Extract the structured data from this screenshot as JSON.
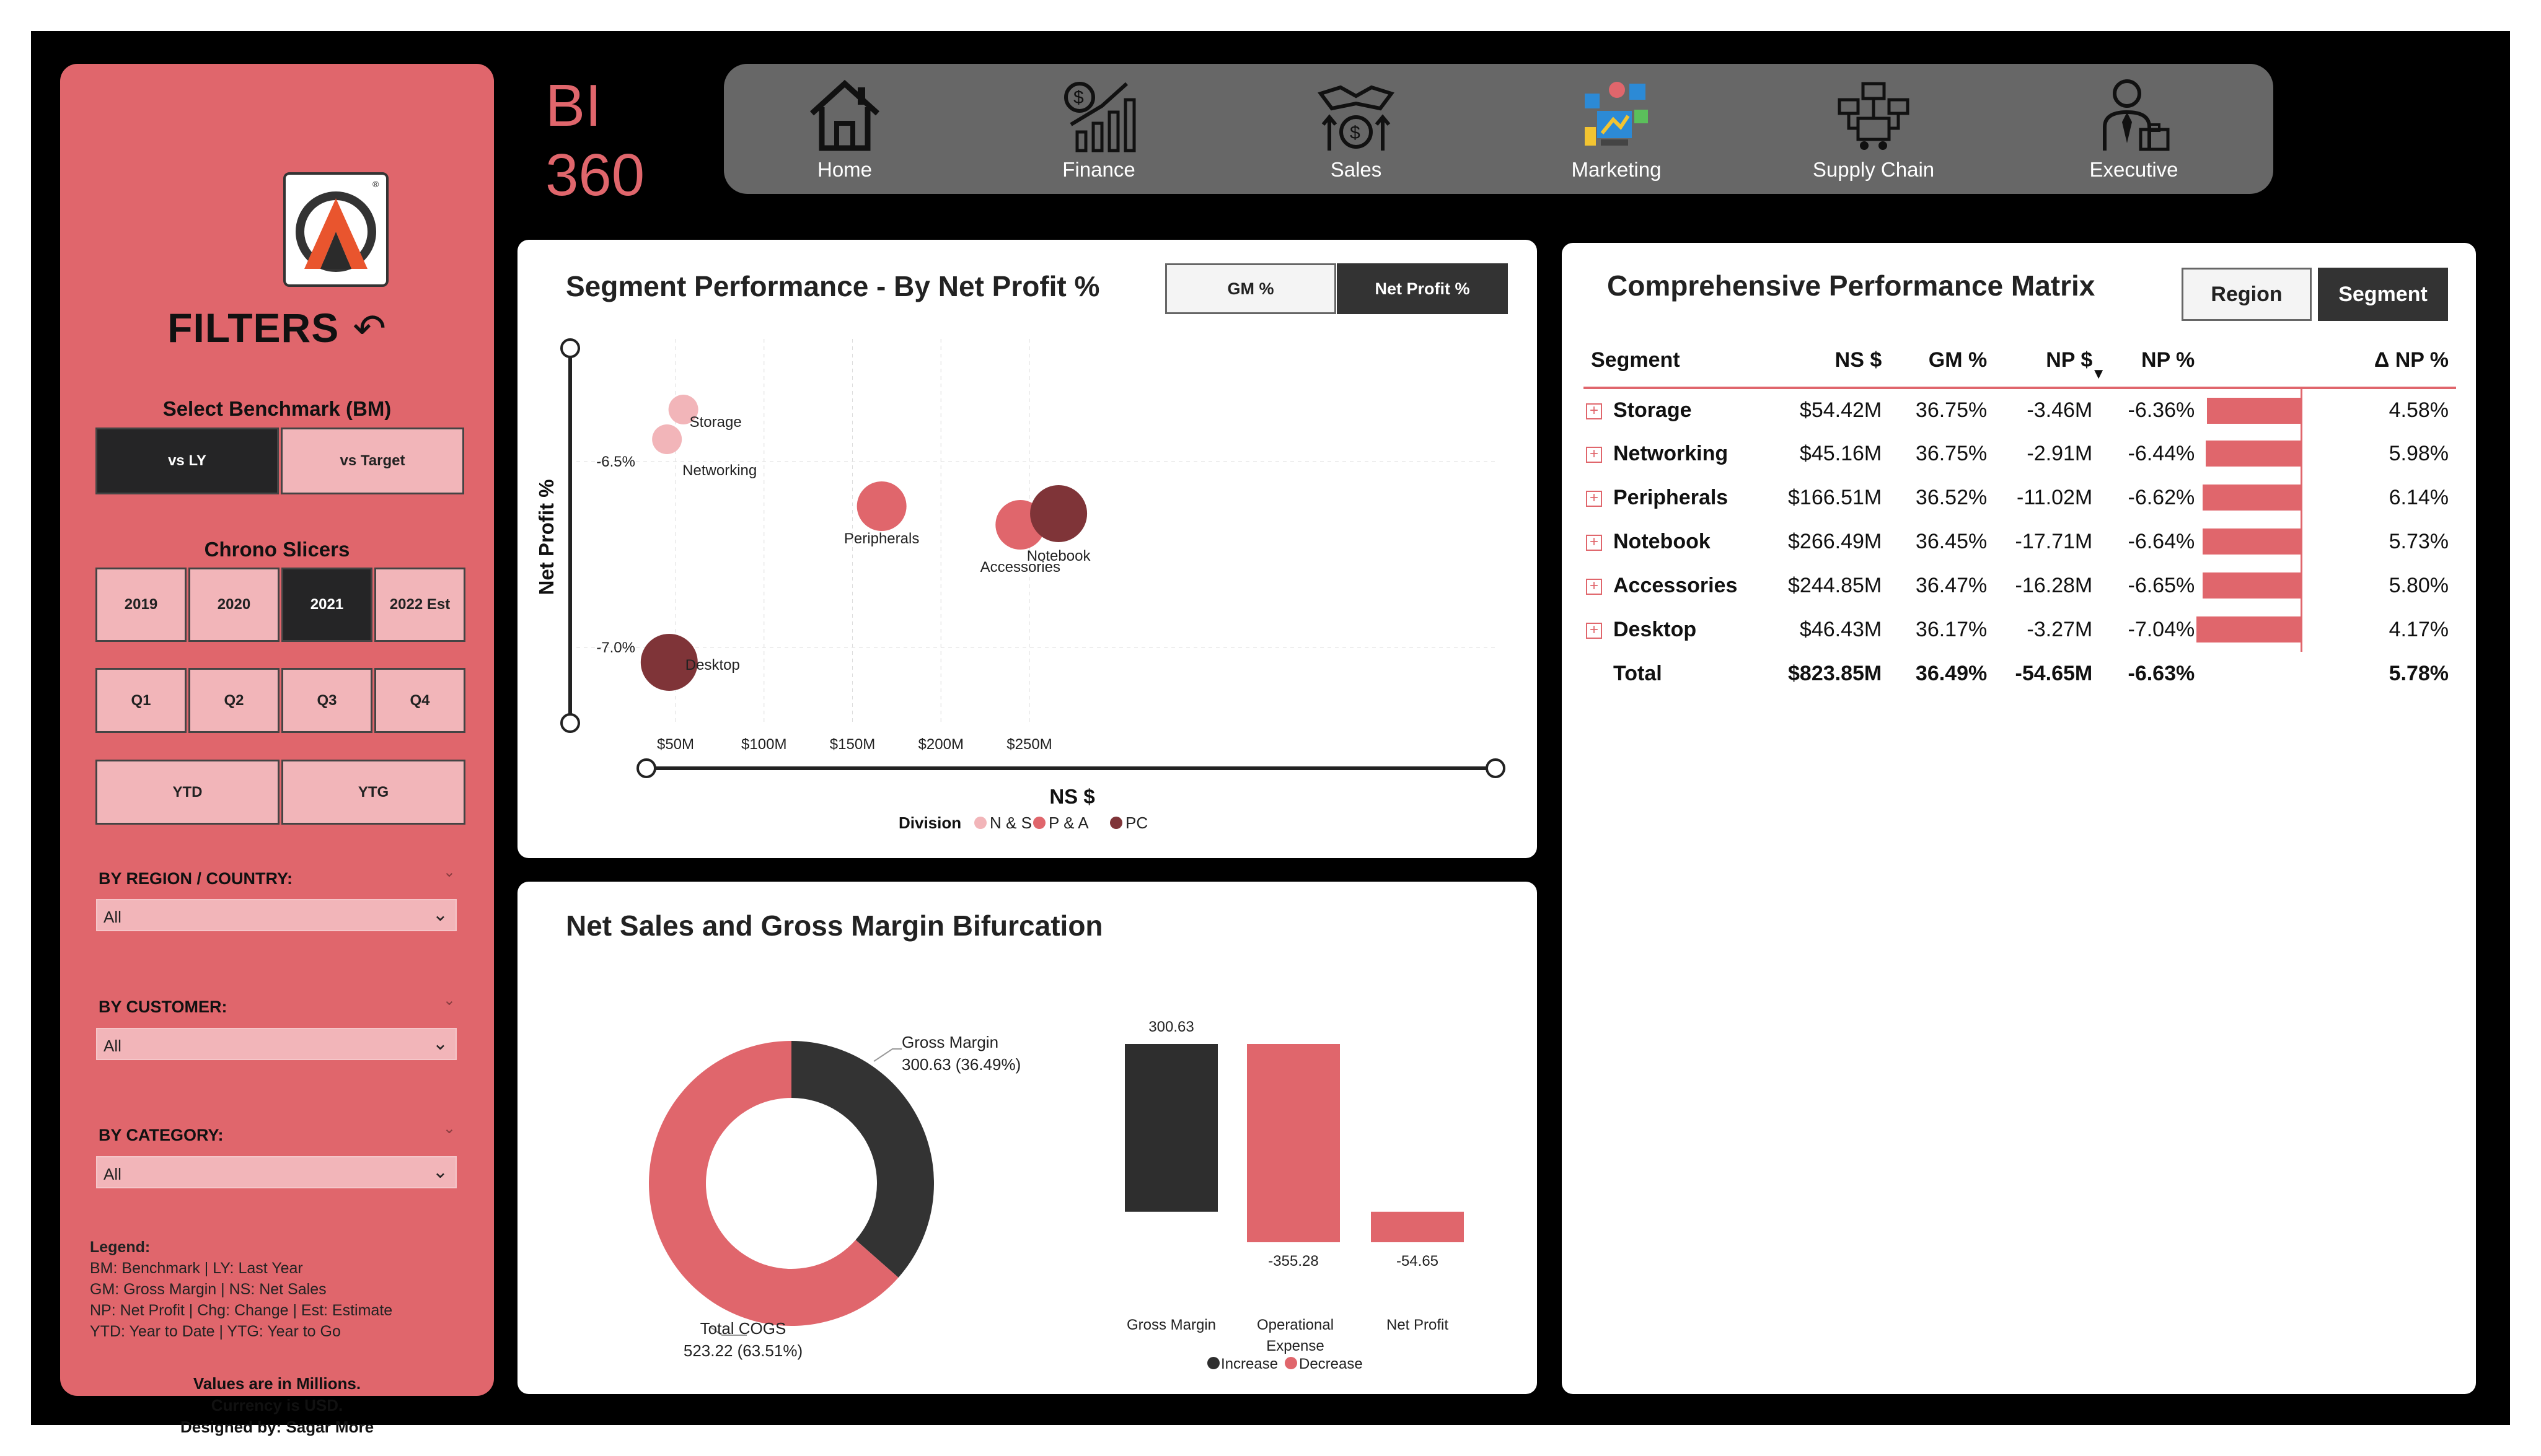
{
  "brand": {
    "line1": "BI",
    "line2": "360"
  },
  "nav": [
    {
      "label": "Home",
      "icon": "home-icon"
    },
    {
      "label": "Finance",
      "icon": "finance-icon"
    },
    {
      "label": "Sales",
      "icon": "sales-icon"
    },
    {
      "label": "Marketing",
      "icon": "marketing-icon"
    },
    {
      "label": "Supply Chain",
      "icon": "supply-chain-icon"
    },
    {
      "label": "Executive",
      "icon": "executive-icon"
    }
  ],
  "sidebar": {
    "title": "FILTERS",
    "benchmark": {
      "title": "Select Benchmark (BM)",
      "options": [
        "vs LY",
        "vs Target"
      ],
      "selected": "vs LY"
    },
    "chrono": {
      "title": "Chrono Slicers",
      "years": [
        "2019",
        "2020",
        "2021",
        "2022 Est"
      ],
      "selected_year": "2021",
      "quarters": [
        "Q1",
        "Q2",
        "Q3",
        "Q4"
      ],
      "periods": [
        "YTD",
        "YTG"
      ]
    },
    "region": {
      "label": "BY REGION / COUNTRY:",
      "value": "All"
    },
    "customer": {
      "label": "BY CUSTOMER:",
      "value": "All"
    },
    "category": {
      "label": "BY CATEGORY:",
      "value": "All"
    },
    "legend": {
      "title": "Legend:",
      "lines": [
        "BM: Benchmark | LY: Last Year",
        "GM: Gross Margin | NS: Net Sales",
        "NP: Net Profit | Chg: Change | Est: Estimate",
        "YTD: Year to Date | YTG: Year to Go"
      ]
    },
    "notes": [
      "Values are in Millions.",
      "Currency is USD.",
      "Designed by: Sagar More"
    ]
  },
  "scatter": {
    "title": "Segment Performance - By Net Profit %",
    "toggles": {
      "gm": "GM %",
      "np": "Net Profit %"
    },
    "colors": {
      "ns": "#f2b5b9",
      "pa": "#e0666c",
      "pc": "#7f3438"
    }
  },
  "matrix": {
    "title": "Comprehensive Performance Matrix",
    "toggles": {
      "region": "Region",
      "segment": "Segment"
    },
    "headers": [
      "Segment",
      "NS $",
      "GM %",
      "NP $",
      "NP %",
      "",
      "Δ NP %"
    ],
    "rows": [
      {
        "segment": "Storage",
        "ns": "$54.42M",
        "gm": "36.75%",
        "np": "-3.46M",
        "npp": "-6.36%",
        "bar": -6.36,
        "dnp": "4.58%"
      },
      {
        "segment": "Networking",
        "ns": "$45.16M",
        "gm": "36.75%",
        "np": "-2.91M",
        "npp": "-6.44%",
        "bar": -6.44,
        "dnp": "5.98%"
      },
      {
        "segment": "Peripherals",
        "ns": "$166.51M",
        "gm": "36.52%",
        "np": "-11.02M",
        "npp": "-6.62%",
        "bar": -6.62,
        "dnp": "6.14%"
      },
      {
        "segment": "Notebook",
        "ns": "$266.49M",
        "gm": "36.45%",
        "np": "-17.71M",
        "npp": "-6.64%",
        "bar": -6.64,
        "dnp": "5.73%"
      },
      {
        "segment": "Accessories",
        "ns": "$244.85M",
        "gm": "36.47%",
        "np": "-16.28M",
        "npp": "-6.65%",
        "bar": -6.65,
        "dnp": "5.80%"
      },
      {
        "segment": "Desktop",
        "ns": "$46.43M",
        "gm": "36.17%",
        "np": "-3.27M",
        "npp": "-7.04%",
        "bar": -7.04,
        "dnp": "4.17%"
      }
    ],
    "total": {
      "segment": "Total",
      "ns": "$823.85M",
      "gm": "36.49%",
      "np": "-54.65M",
      "npp": "-6.63%",
      "dnp": "5.78%"
    }
  },
  "bifurcation": {
    "title": "Net Sales and Gross Margin Bifurcation"
  },
  "chart_data": [
    {
      "type": "scatter",
      "title": "Segment Performance - By Net Profit %",
      "xlabel": "NS $",
      "ylabel": "Net Profit %",
      "x_ticks": [
        "$50M",
        "$100M",
        "$150M",
        "$200M",
        "$250M"
      ],
      "y_ticks": [
        "-6.5%",
        "-7.0%"
      ],
      "xlim": [
        40,
        280
      ],
      "ylim": [
        -7.1,
        -6.36
      ],
      "legend": {
        "title": "Division",
        "entries": [
          "N & S",
          "P & A",
          "PC"
        ]
      },
      "points": [
        {
          "label": "Storage",
          "x": 54.42,
          "y": -6.36,
          "division": "N & S"
        },
        {
          "label": "Networking",
          "x": 45.16,
          "y": -6.44,
          "division": "N & S"
        },
        {
          "label": "Peripherals",
          "x": 166.51,
          "y": -6.62,
          "division": "P & A"
        },
        {
          "label": "Accessories",
          "x": 244.85,
          "y": -6.65,
          "division": "P & A"
        },
        {
          "label": "Notebook",
          "x": 266.49,
          "y": -6.64,
          "division": "PC"
        },
        {
          "label": "Desktop",
          "x": 46.43,
          "y": -7.04,
          "division": "PC"
        }
      ]
    },
    {
      "type": "pie",
      "donut": true,
      "slices": [
        {
          "name": "Gross Margin",
          "value": 300.63,
          "label": "300.63 (36.49%)",
          "color": "#333333"
        },
        {
          "name": "Total COGS",
          "value": 523.22,
          "label": "523.22 (63.51%)",
          "color": "#e0666c"
        }
      ]
    },
    {
      "type": "bar",
      "subtype": "waterfall",
      "categories": [
        "Gross Margin",
        "Operational Expense",
        "Net Profit"
      ],
      "values": [
        300.63,
        -355.28,
        -54.65
      ],
      "labels": [
        "300.63",
        "-355.28",
        "-54.65"
      ],
      "legend": [
        "Increase",
        "Decrease"
      ],
      "colors": {
        "increase": "#2e2e2e",
        "decrease": "#e0666c"
      }
    }
  ]
}
